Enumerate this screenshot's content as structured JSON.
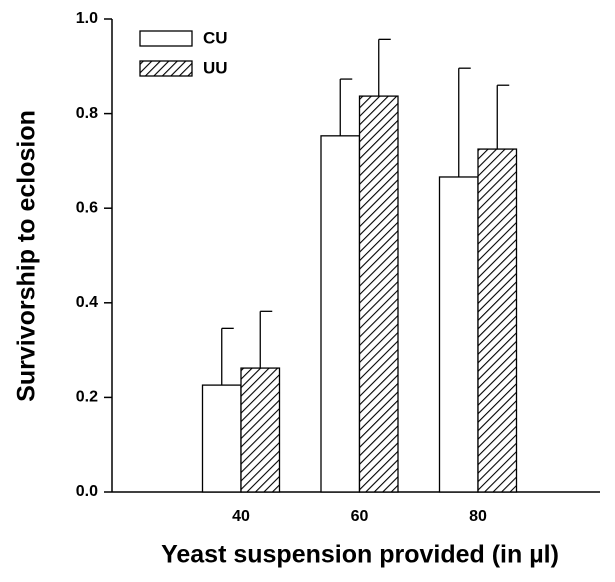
{
  "chart_data": {
    "type": "bar",
    "x_label": "Yeast suspension provided (in µl)",
    "y_label": "Survivorship to eclosion",
    "categories": [
      "40",
      "60",
      "80"
    ],
    "series": [
      {
        "name": "CU",
        "color": "#ffffff",
        "values": [
          0.226,
          0.753,
          0.666
        ],
        "errors": [
          0.12,
          0.12,
          0.23
        ]
      },
      {
        "name": "UU",
        "color": "hatched",
        "values": [
          0.262,
          0.837,
          0.725
        ],
        "errors": [
          0.12,
          0.12,
          0.135
        ]
      }
    ],
    "ylim": [
      0,
      1
    ],
    "yticks": [
      {
        "value": 0,
        "label": "0.0"
      },
      0.2,
      0.4,
      0.6,
      0.8,
      {
        "value": 1,
        "label": "1.0"
      }
    ],
    "legend": "upper left"
  }
}
